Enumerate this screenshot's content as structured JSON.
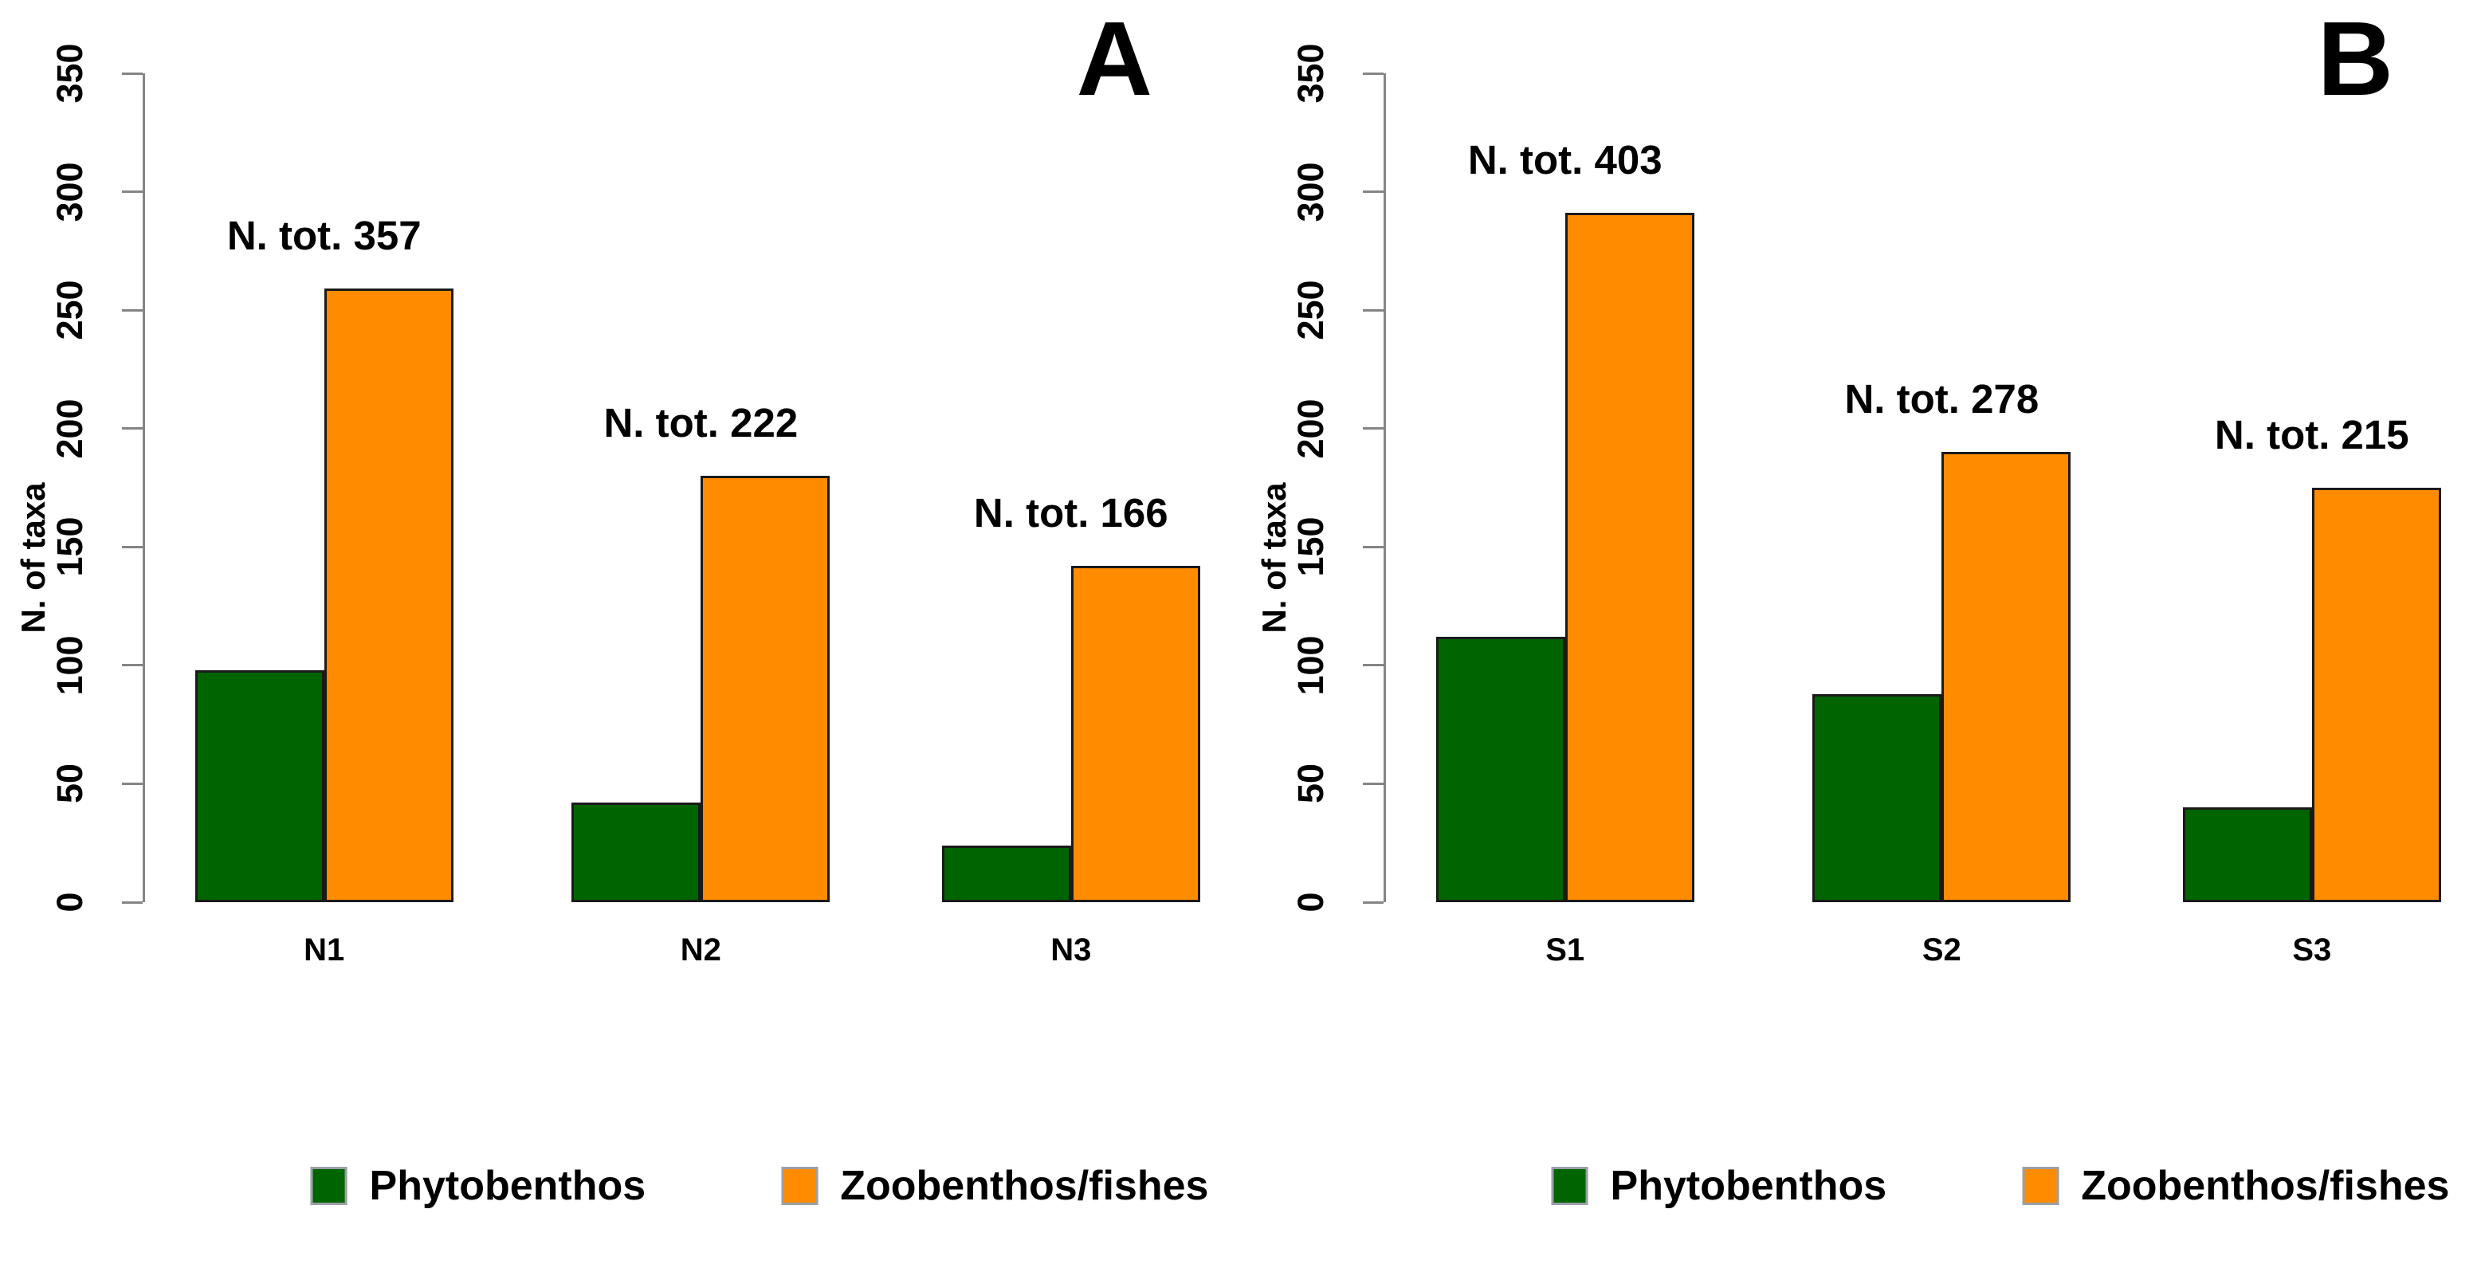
{
  "figure": {
    "background": "#ffffff",
    "text_color": "#000000",
    "axis_color": "#858585",
    "bar_border_color": "#1a1a1a"
  },
  "chart_data": [
    {
      "type": "bar",
      "panel_label": "A",
      "categories": [
        "N1",
        "N2",
        "N3"
      ],
      "series": [
        {
          "name": "Phytobenthos",
          "color": "#006400",
          "values": [
            98,
            42,
            24
          ]
        },
        {
          "name": "Zoobenthos/fishes",
          "color": "#FF8C00",
          "values": [
            259,
            180,
            142
          ]
        }
      ],
      "totals": [
        357,
        222,
        166
      ],
      "bar_annotations": [
        "N. tot. 357",
        "N. tot. 222",
        "N. tot. 166"
      ],
      "xlabel": "",
      "ylabel": "N. of taxa",
      "ylim": [
        0,
        350
      ],
      "yticks": [
        0,
        50,
        100,
        150,
        200,
        250,
        300,
        350
      ],
      "grid": false,
      "legend_position": "bottom",
      "legend_labels": [
        "Phytobenthos",
        "Zoobenthos/fishes"
      ]
    },
    {
      "type": "bar",
      "panel_label": "B",
      "categories": [
        "S1",
        "S2",
        "S3"
      ],
      "series": [
        {
          "name": "Phytobenthos",
          "color": "#006400",
          "values": [
            112,
            88,
            40
          ]
        },
        {
          "name": "Zoobenthos/fishes",
          "color": "#FF8C00",
          "values": [
            291,
            190,
            175
          ]
        }
      ],
      "totals": [
        403,
        278,
        215
      ],
      "bar_annotations": [
        "N. tot. 403",
        "N. tot. 278",
        "N. tot. 215"
      ],
      "xlabel": "",
      "ylabel": "N. of taxa",
      "ylim": [
        0,
        350
      ],
      "yticks": [
        0,
        50,
        100,
        150,
        200,
        250,
        300,
        350
      ],
      "grid": false,
      "legend_position": "bottom",
      "legend_labels": [
        "Phytobenthos",
        "Zoobenthos/fishes"
      ]
    }
  ]
}
